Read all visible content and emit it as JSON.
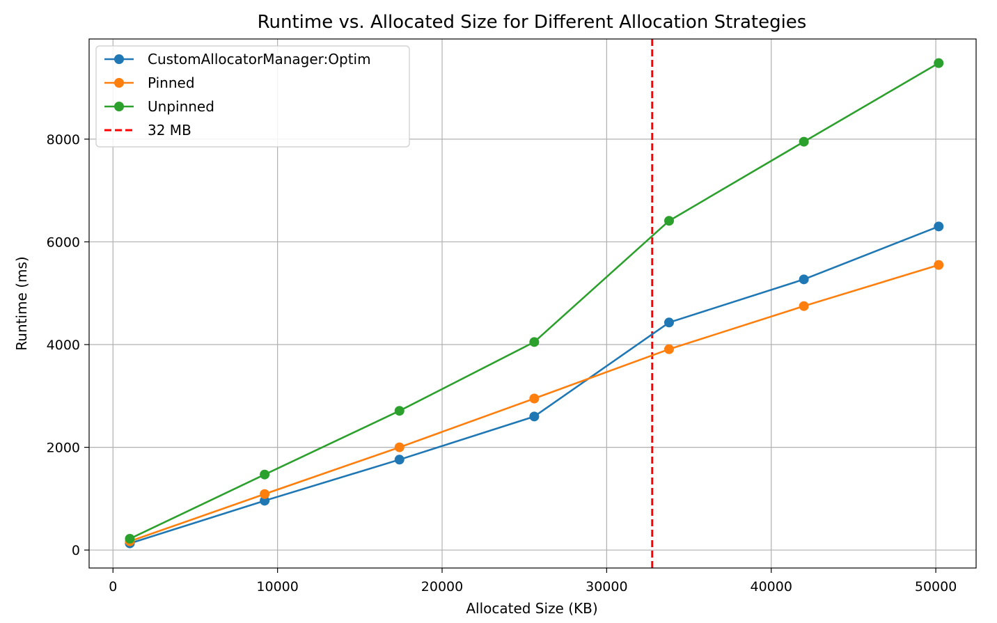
{
  "chart_data": {
    "type": "line",
    "title": "Runtime vs. Allocated Size for Different Allocation Strategies",
    "xlabel": "Allocated Size (KB)",
    "ylabel": "Runtime (ms)",
    "xlim": [
      -1450,
      52450
    ],
    "ylim": [
      -350,
      9950
    ],
    "xticks": [
      0,
      10000,
      20000,
      30000,
      40000,
      50000
    ],
    "yticks": [
      0,
      2000,
      4000,
      6000,
      8000
    ],
    "grid": true,
    "legend_position": "upper-left",
    "x": [
      1024,
      9216,
      17408,
      25600,
      33792,
      41984,
      50176
    ],
    "series": [
      {
        "name": "CustomAllocatorManager:Optim",
        "color": "#1f77b4",
        "values": [
          130,
          960,
          1760,
          2600,
          4430,
          5270,
          6300
        ]
      },
      {
        "name": "Pinned",
        "color": "#ff7f0e",
        "values": [
          170,
          1090,
          2000,
          2950,
          3910,
          4750,
          5550
        ]
      },
      {
        "name": "Unpinned",
        "color": "#2ca02c",
        "values": [
          220,
          1470,
          2710,
          4050,
          6410,
          7950,
          9480
        ]
      }
    ],
    "reference_lines": [
      {
        "name": "32 MB",
        "x": 32768,
        "orientation": "vertical",
        "style": "dashed",
        "color": "#ff0000"
      }
    ]
  }
}
